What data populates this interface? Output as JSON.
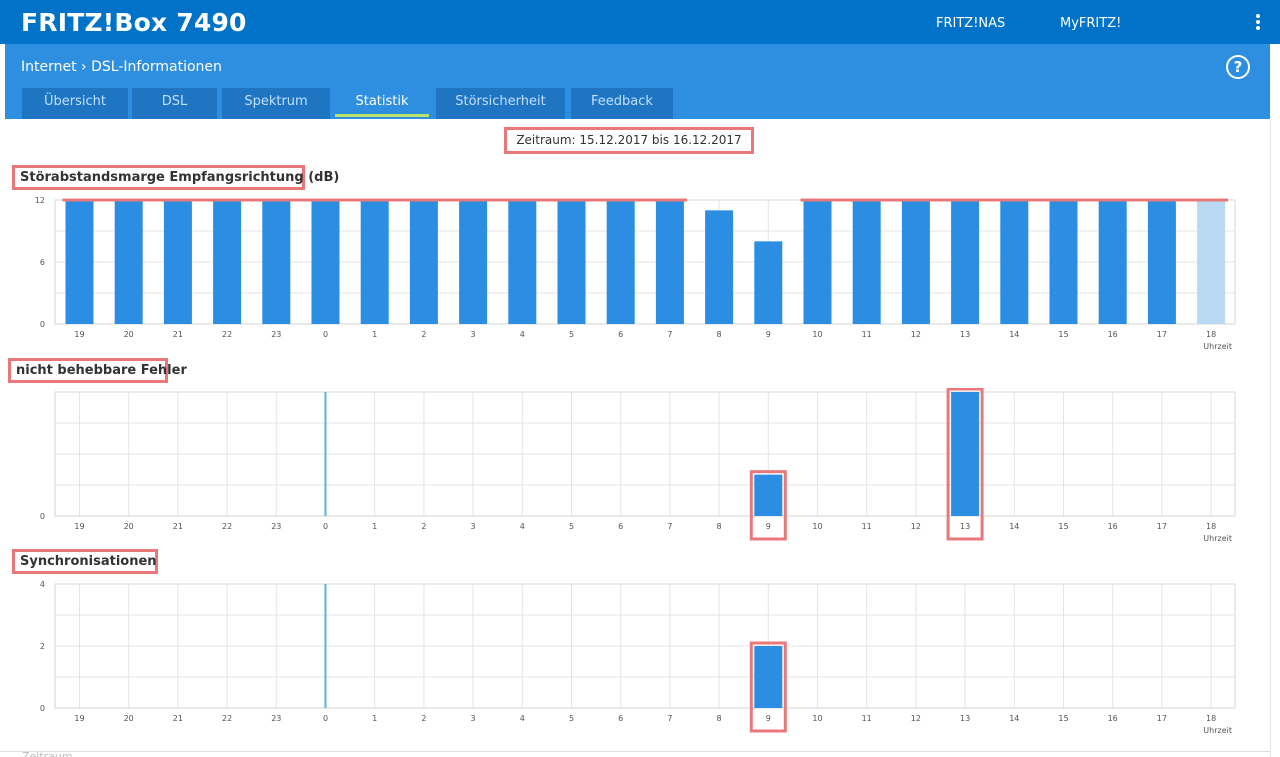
{
  "header": {
    "brand": "FRITZ!Box 7490",
    "links": [
      "FRITZ!NAS",
      "MyFRITZ!"
    ],
    "menu_icon": "vertical-dots-icon"
  },
  "breadcrumb": {
    "section": "Internet",
    "separator_icon": "chevron-right-icon",
    "page": "DSL-Informationen"
  },
  "help_icon": "question-circle-icon",
  "help_label": "?",
  "tabs": [
    {
      "label": "Übersicht",
      "active": false
    },
    {
      "label": "DSL",
      "active": false
    },
    {
      "label": "Spektrum",
      "active": false
    },
    {
      "label": "Statistik",
      "active": true
    },
    {
      "label": "Störsicherheit",
      "active": false
    },
    {
      "label": "Feedback",
      "active": false
    }
  ],
  "period": "Zeitraum: 15.12.2017 bis 16.12.2017",
  "colors": {
    "brand": "#0073c8",
    "subbar": "#2e8fe0",
    "bar": "#2b8ee3",
    "current_bar": "#b9d9f2",
    "highlight": "#e8787a",
    "zero_line": "#5bb3e0"
  },
  "chart_data": [
    {
      "type": "bar",
      "title": "Störabstandsmarge Empfangsrichtung (dB)",
      "categories": [
        "19",
        "20",
        "21",
        "22",
        "23",
        "0",
        "1",
        "2",
        "3",
        "4",
        "5",
        "6",
        "7",
        "8",
        "9",
        "10",
        "11",
        "12",
        "13",
        "14",
        "15",
        "16",
        "17",
        "18"
      ],
      "values": [
        12,
        12,
        12,
        12,
        12,
        12,
        12,
        12,
        12,
        12,
        12,
        12,
        12,
        11,
        8,
        12,
        12,
        12,
        12,
        12,
        12,
        12,
        12,
        12
      ],
      "highlight_last": true,
      "xlabel": "Uhrzeit",
      "yticks": [
        0,
        6,
        12
      ],
      "ylim": [
        0,
        12
      ],
      "grid": true
    },
    {
      "type": "bar",
      "title": "nicht behebbare Fehler",
      "categories": [
        "19",
        "20",
        "21",
        "22",
        "23",
        "0",
        "1",
        "2",
        "3",
        "4",
        "5",
        "6",
        "7",
        "8",
        "9",
        "10",
        "11",
        "12",
        "13",
        "14",
        "15",
        "16",
        "17",
        "18"
      ],
      "values": [
        0,
        0,
        0,
        0,
        0,
        0,
        0,
        0,
        0,
        0,
        0,
        0,
        0,
        0,
        1,
        0,
        0,
        0,
        3,
        0,
        0,
        0,
        0,
        0
      ],
      "xlabel": "Uhrzeit",
      "yticks": [
        0
      ],
      "ylim": [
        0,
        3
      ],
      "grid": true,
      "highlighted_categories": [
        "9",
        "13"
      ]
    },
    {
      "type": "bar",
      "title": "Synchronisationen",
      "categories": [
        "19",
        "20",
        "21",
        "22",
        "23",
        "0",
        "1",
        "2",
        "3",
        "4",
        "5",
        "6",
        "7",
        "8",
        "9",
        "10",
        "11",
        "12",
        "13",
        "14",
        "15",
        "16",
        "17",
        "18"
      ],
      "values": [
        0,
        0,
        0,
        0,
        0,
        0,
        0,
        0,
        0,
        0,
        0,
        0,
        0,
        0,
        2,
        0,
        0,
        0,
        0,
        0,
        0,
        0,
        0,
        0
      ],
      "xlabel": "Uhrzeit",
      "yticks": [
        0,
        2,
        4
      ],
      "ylim": [
        0,
        4
      ],
      "grid": true,
      "highlighted_categories": [
        "9"
      ]
    }
  ],
  "footer": {
    "label": "Zeitraum"
  }
}
